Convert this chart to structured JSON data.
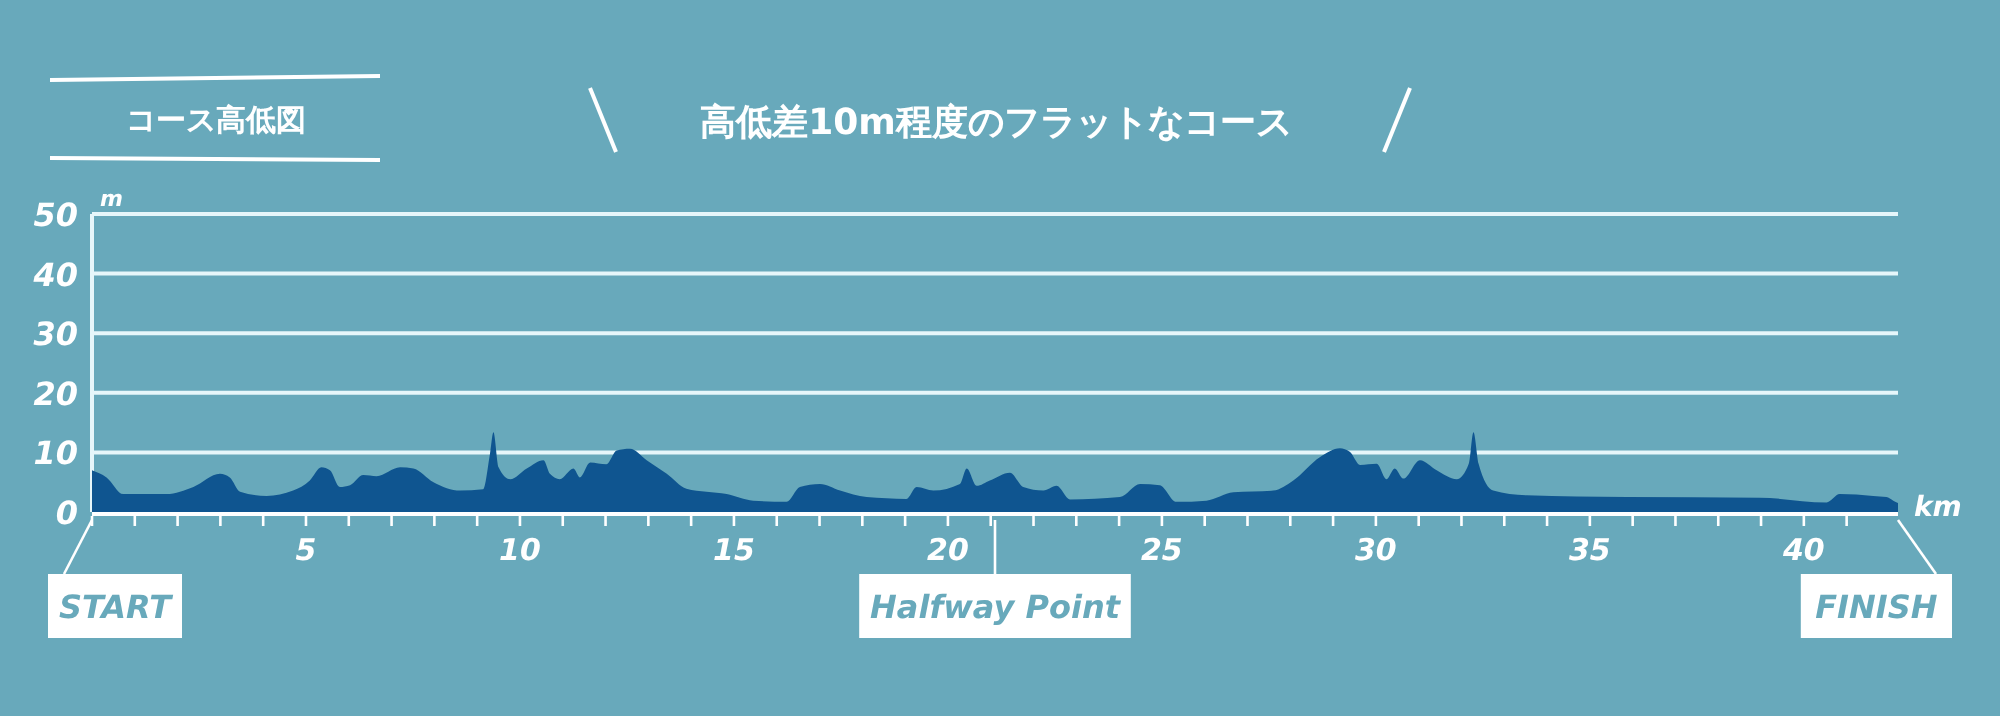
{
  "chart_data": {
    "type": "area",
    "title": "コース高低図",
    "subtitle": "高低差10m程度のフラットなコース",
    "xlabel": "km",
    "ylabel": "m",
    "series": [
      {
        "color": "#0f5590",
        "x": [
          0,
          0.34,
          0.73,
          1.74,
          2.37,
          2.99,
          3.22,
          3.46,
          4.08,
          4.7,
          5.09,
          5.36,
          5.56,
          5.79,
          6.03,
          6.34,
          6.65,
          7.2,
          7.51,
          7.98,
          8.6,
          9.14,
          9.3,
          9.38,
          9.5,
          9.77,
          10.16,
          10.55,
          10.7,
          10.93,
          11.25,
          11.4,
          11.64,
          12.02,
          12.26,
          12.57,
          12.96,
          13.43,
          13.89,
          14.83,
          15.45,
          16.23,
          16.54,
          17.01,
          17.48,
          18.1,
          19.03,
          19.27,
          19.66,
          20.28,
          20.44,
          20.67,
          20.98,
          21.45,
          21.76,
          22.23,
          22.54,
          22.85,
          24.02,
          24.49,
          24.95,
          25.34,
          26.04,
          26.67,
          27.6,
          28.07,
          28.69,
          29.16,
          29.39,
          29.63,
          30.02,
          30.25,
          30.44,
          30.64,
          31.03,
          31.42,
          31.89,
          32.17,
          32.28,
          32.4,
          32.74,
          33.52,
          35.86,
          38.97,
          40.53,
          40.84,
          41.62,
          41.93,
          42.09,
          42.2
        ],
        "values": [
          7,
          5.8,
          3,
          3,
          4.2,
          6.4,
          5.8,
          3.4,
          2.7,
          3.6,
          5.3,
          7.5,
          7,
          4.2,
          4.5,
          6.2,
          6,
          7.5,
          7.3,
          5,
          3.6,
          3.8,
          9.8,
          13.4,
          7.5,
          5.5,
          7.3,
          8.7,
          6.4,
          5.5,
          7.3,
          5.8,
          8.3,
          8,
          10.3,
          10.6,
          8.7,
          6.4,
          3.9,
          3,
          1.9,
          1.7,
          4.2,
          4.7,
          3.6,
          2.5,
          2.2,
          4.2,
          3.6,
          4.7,
          7.3,
          4.4,
          5.3,
          6.6,
          4.2,
          3.6,
          4.4,
          2.1,
          2.5,
          4.7,
          4.5,
          1.7,
          1.9,
          3.3,
          3.6,
          5.3,
          9.2,
          10.7,
          10.1,
          7.9,
          8.1,
          5.5,
          7.3,
          5.6,
          8.7,
          7,
          5.5,
          8.1,
          13.4,
          8.1,
          3.6,
          2.8,
          2.5,
          2.4,
          1.6,
          3,
          2.7,
          2.5,
          1.9,
          1.5
        ]
      }
    ],
    "xlim": [
      0,
      42.2
    ],
    "ylim": [
      0,
      50
    ],
    "xticks": [
      {
        "value": 0,
        "label": null
      },
      {
        "value": 1,
        "label": null
      },
      {
        "value": 2,
        "label": null
      },
      {
        "value": 3,
        "label": null
      },
      {
        "value": 4,
        "label": null
      },
      5,
      {
        "value": 6,
        "label": null
      },
      {
        "value": 7,
        "label": null
      },
      {
        "value": 8,
        "label": null
      },
      {
        "value": 9,
        "label": null
      },
      10,
      {
        "value": 11,
        "label": null
      },
      {
        "value": 12,
        "label": null
      },
      {
        "value": 13,
        "label": null
      },
      {
        "value": 14,
        "label": null
      },
      15,
      {
        "value": 16,
        "label": null
      },
      {
        "value": 17,
        "label": null
      },
      {
        "value": 18,
        "label": null
      },
      {
        "value": 19,
        "label": null
      },
      20,
      {
        "value": 21,
        "label": null
      },
      {
        "value": 22,
        "label": null
      },
      {
        "value": 23,
        "label": null
      },
      {
        "value": 24,
        "label": null
      },
      25,
      {
        "value": 26,
        "label": null
      },
      {
        "value": 27,
        "label": null
      },
      {
        "value": 28,
        "label": null
      },
      {
        "value": 29,
        "label": null
      },
      30,
      {
        "value": 31,
        "label": null
      },
      {
        "value": 32,
        "label": null
      },
      {
        "value": 33,
        "label": null
      },
      {
        "value": 34,
        "label": null
      },
      35,
      {
        "value": 36,
        "label": null
      },
      {
        "value": 37,
        "label": null
      },
      {
        "value": 38,
        "label": null
      },
      {
        "value": 39,
        "label": null
      },
      40,
      {
        "value": 41,
        "label": null
      }
    ],
    "yticks": [
      0,
      10,
      20,
      30,
      40,
      50
    ],
    "grid": "y",
    "annotations": [
      {
        "text": "START",
        "x": 0,
        "y": 0
      },
      {
        "text": "Halfway Point",
        "x": 21.1,
        "y": 0
      },
      {
        "text": "FINISH",
        "x": 42.2,
        "y": 0
      }
    ]
  }
}
